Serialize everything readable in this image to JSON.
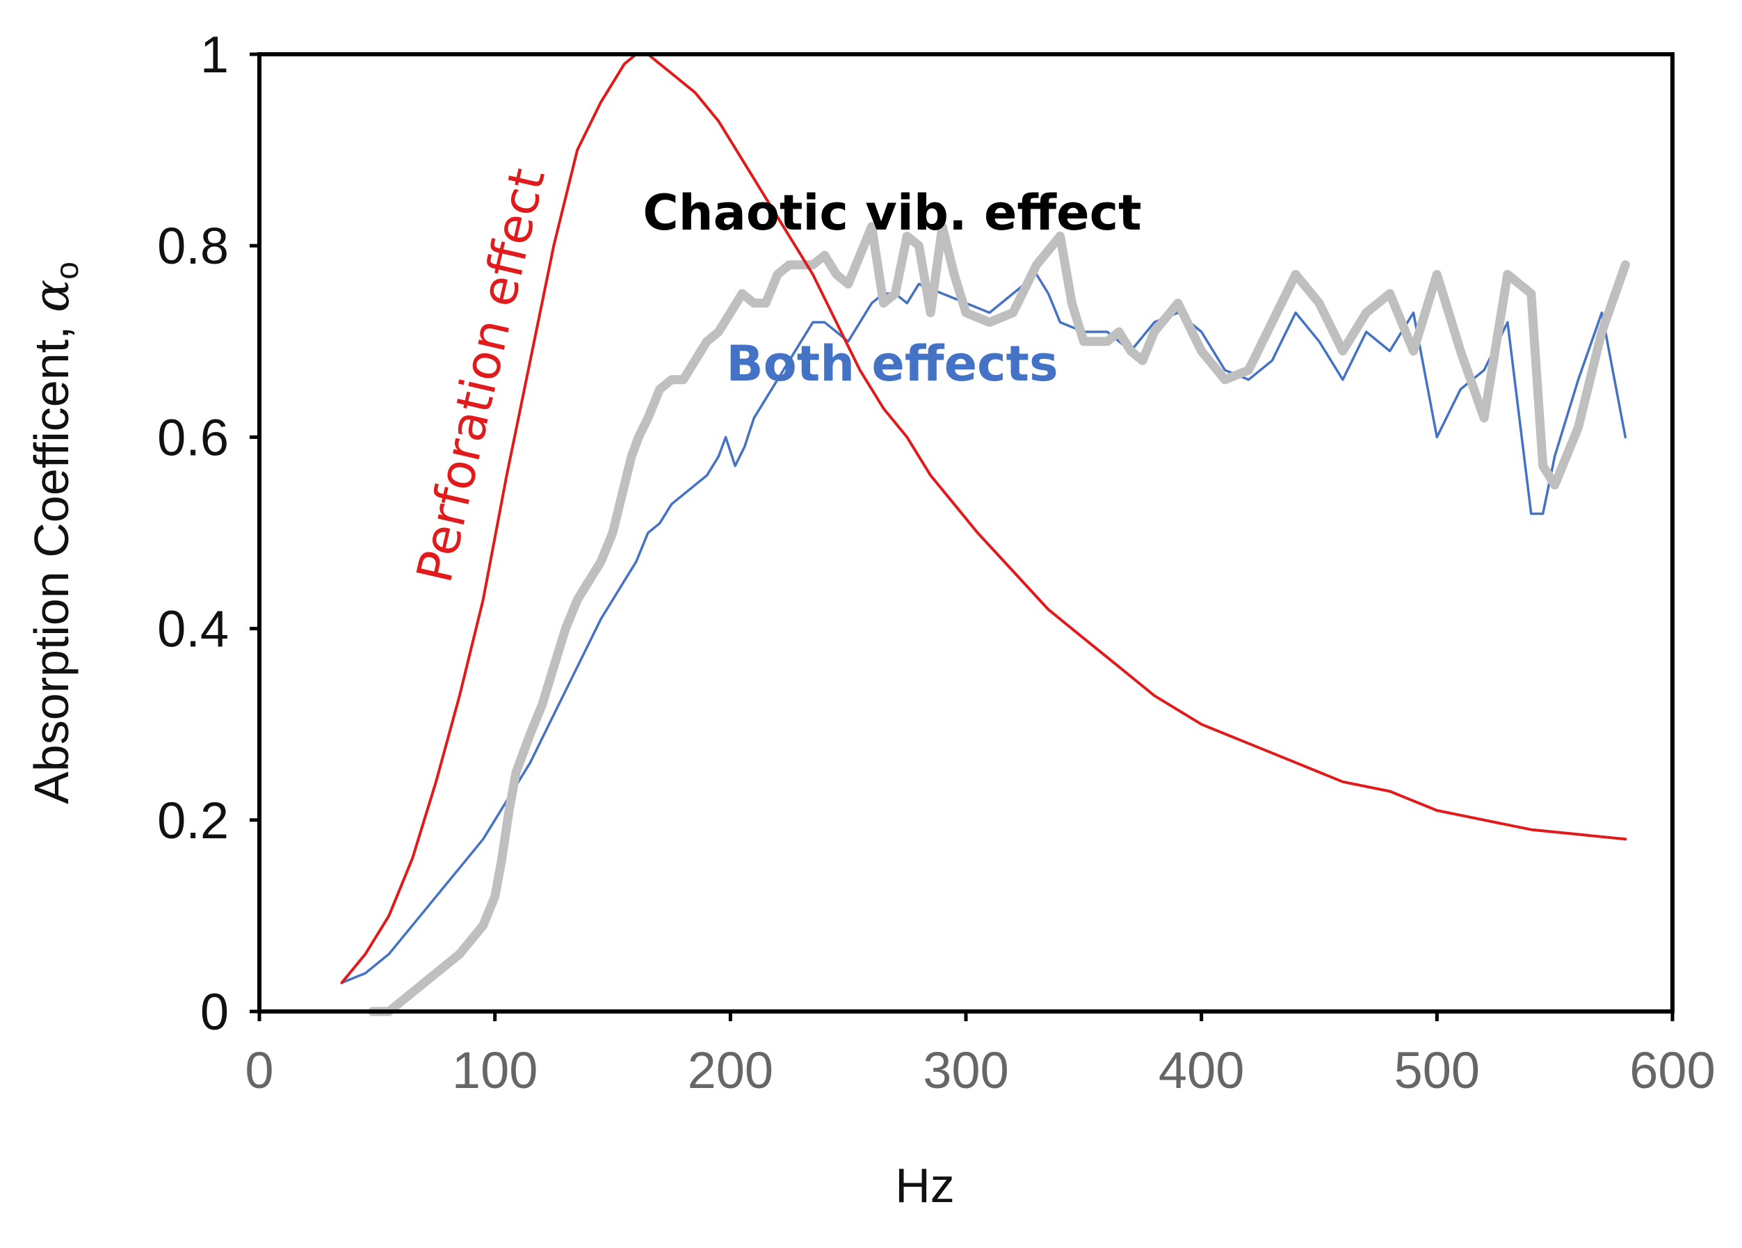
{
  "chart_data": {
    "type": "line",
    "title": "",
    "xlabel": "Hz",
    "ylabel_main": "Absorption  Coefficent, ",
    "ylabel_symbol": "α",
    "ylabel_subscript": "o",
    "xlim": [
      0,
      600
    ],
    "ylim": [
      0,
      1
    ],
    "x_ticks": [
      "0",
      "100",
      "200",
      "300",
      "400",
      "500",
      "600"
    ],
    "x_tick_values": [
      0,
      100,
      200,
      300,
      400,
      500,
      600
    ],
    "y_ticks": [
      "0",
      "0.2",
      "0.4",
      "0.6",
      "0.8",
      "1"
    ],
    "y_tick_values": [
      0,
      0.2,
      0.4,
      0.6,
      0.8,
      1.0
    ],
    "grid": false,
    "colors": {
      "perforation": "#e11b1b",
      "both": "#4472c4",
      "chaotic": "#bfbfbf",
      "axis": "#000000"
    },
    "annotations": [
      {
        "id": "perforation",
        "text": "Perforation effect",
        "color": "#e11b1b"
      },
      {
        "id": "chaotic",
        "text": "Chaotic vib. effect",
        "color": "#000000"
      },
      {
        "id": "both",
        "text": "Both effects",
        "color": "#4472c4"
      }
    ],
    "series": [
      {
        "name": "Perforation effect",
        "color": "#e11b1b",
        "x": [
          35,
          45,
          55,
          65,
          75,
          85,
          95,
          105,
          115,
          125,
          135,
          145,
          155,
          160,
          165,
          170,
          175,
          185,
          195,
          205,
          215,
          225,
          235,
          245,
          255,
          265,
          275,
          285,
          295,
          305,
          320,
          335,
          350,
          365,
          380,
          400,
          420,
          440,
          460,
          480,
          500,
          520,
          540,
          560,
          580
        ],
        "values": [
          0.03,
          0.06,
          0.1,
          0.16,
          0.24,
          0.33,
          0.43,
          0.56,
          0.68,
          0.8,
          0.9,
          0.95,
          0.99,
          1.0,
          1.0,
          0.99,
          0.98,
          0.96,
          0.93,
          0.89,
          0.85,
          0.81,
          0.77,
          0.72,
          0.67,
          0.63,
          0.6,
          0.56,
          0.53,
          0.5,
          0.46,
          0.42,
          0.39,
          0.36,
          0.33,
          0.3,
          0.28,
          0.26,
          0.24,
          0.23,
          0.21,
          0.2,
          0.19,
          0.185,
          0.18
        ]
      },
      {
        "name": "Both effects",
        "color": "#4472c4",
        "x": [
          35,
          45,
          55,
          65,
          75,
          85,
          95,
          105,
          115,
          125,
          135,
          145,
          155,
          160,
          165,
          170,
          175,
          180,
          185,
          190,
          195,
          198,
          202,
          206,
          210,
          215,
          220,
          225,
          230,
          235,
          240,
          245,
          250,
          255,
          260,
          265,
          270,
          275,
          280,
          290,
          300,
          310,
          320,
          330,
          335,
          340,
          350,
          360,
          370,
          380,
          390,
          400,
          410,
          420,
          430,
          440,
          450,
          460,
          470,
          480,
          490,
          500,
          510,
          520,
          530,
          540,
          545,
          550,
          560,
          570,
          580
        ],
        "values": [
          0.03,
          0.04,
          0.06,
          0.09,
          0.12,
          0.15,
          0.18,
          0.22,
          0.26,
          0.31,
          0.36,
          0.41,
          0.45,
          0.47,
          0.5,
          0.51,
          0.53,
          0.54,
          0.55,
          0.56,
          0.58,
          0.6,
          0.57,
          0.59,
          0.62,
          0.64,
          0.66,
          0.68,
          0.7,
          0.72,
          0.72,
          0.71,
          0.7,
          0.72,
          0.74,
          0.75,
          0.75,
          0.74,
          0.76,
          0.75,
          0.74,
          0.73,
          0.75,
          0.77,
          0.75,
          0.72,
          0.71,
          0.71,
          0.69,
          0.72,
          0.73,
          0.71,
          0.67,
          0.66,
          0.68,
          0.73,
          0.7,
          0.66,
          0.71,
          0.69,
          0.73,
          0.6,
          0.65,
          0.67,
          0.72,
          0.52,
          0.52,
          0.58,
          0.66,
          0.73,
          0.6
        ]
      },
      {
        "name": "Chaotic vib. effect",
        "color": "#bfbfbf",
        "x": [
          48,
          55,
          65,
          75,
          85,
          95,
          100,
          103,
          106,
          109,
          112,
          115,
          120,
          125,
          130,
          135,
          140,
          145,
          150,
          155,
          158,
          161,
          165,
          170,
          175,
          180,
          185,
          190,
          195,
          200,
          205,
          210,
          215,
          220,
          225,
          230,
          235,
          240,
          245,
          250,
          255,
          260,
          265,
          270,
          275,
          280,
          285,
          290,
          295,
          300,
          310,
          320,
          330,
          340,
          345,
          350,
          360,
          365,
          370,
          375,
          380,
          390,
          400,
          410,
          420,
          430,
          440,
          450,
          460,
          470,
          480,
          490,
          500,
          510,
          520,
          530,
          540,
          545,
          550,
          560,
          570,
          580
        ],
        "values": [
          0.0,
          0.0,
          0.02,
          0.04,
          0.06,
          0.09,
          0.12,
          0.16,
          0.21,
          0.25,
          0.27,
          0.29,
          0.32,
          0.36,
          0.4,
          0.43,
          0.45,
          0.47,
          0.5,
          0.55,
          0.58,
          0.6,
          0.62,
          0.65,
          0.66,
          0.66,
          0.68,
          0.7,
          0.71,
          0.73,
          0.75,
          0.74,
          0.74,
          0.77,
          0.78,
          0.78,
          0.78,
          0.79,
          0.77,
          0.76,
          0.79,
          0.82,
          0.74,
          0.75,
          0.81,
          0.8,
          0.73,
          0.82,
          0.77,
          0.73,
          0.72,
          0.73,
          0.78,
          0.81,
          0.74,
          0.7,
          0.7,
          0.71,
          0.69,
          0.68,
          0.71,
          0.74,
          0.69,
          0.66,
          0.67,
          0.72,
          0.77,
          0.74,
          0.69,
          0.73,
          0.75,
          0.69,
          0.77,
          0.69,
          0.62,
          0.77,
          0.75,
          0.57,
          0.55,
          0.61,
          0.71,
          0.78
        ]
      }
    ]
  }
}
